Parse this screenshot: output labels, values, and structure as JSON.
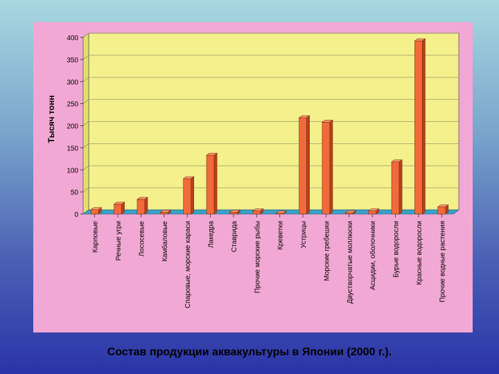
{
  "caption": "Состав продукции аквакультуры в Японии (2000 г.).",
  "colors": {
    "panel": "#f2a8d4",
    "plot_area": "#f4f08c",
    "floor": "#3aa0c8",
    "bar": "#f26a3a",
    "bar_top": "#ff9b6e",
    "bar_side": "#b8401c"
  },
  "chart_data": {
    "type": "bar",
    "title": "",
    "xlabel": "",
    "ylabel": "Тысяч тонн",
    "ylim": [
      0,
      400
    ],
    "y_ticks": [
      0,
      50,
      100,
      150,
      200,
      250,
      300,
      350,
      400
    ],
    "grid": true,
    "categories": [
      "Карповые",
      "Речные угри",
      "Лососевые",
      "Камбаловые",
      "Спаровые, морские караси",
      "Лакедра",
      "Ставрида",
      "Прочие морские рыбы",
      "Креветки",
      "Устрицы",
      "Морские гребешки",
      "Двустворчатые моллюски",
      "Асцидии, оболочники",
      "Бурые водоросли",
      "Красные водоросли",
      "Прочие водные растения"
    ],
    "values": [
      10,
      22,
      33,
      4,
      80,
      133,
      4,
      7,
      2,
      218,
      208,
      3,
      7,
      118,
      392,
      16
    ]
  }
}
